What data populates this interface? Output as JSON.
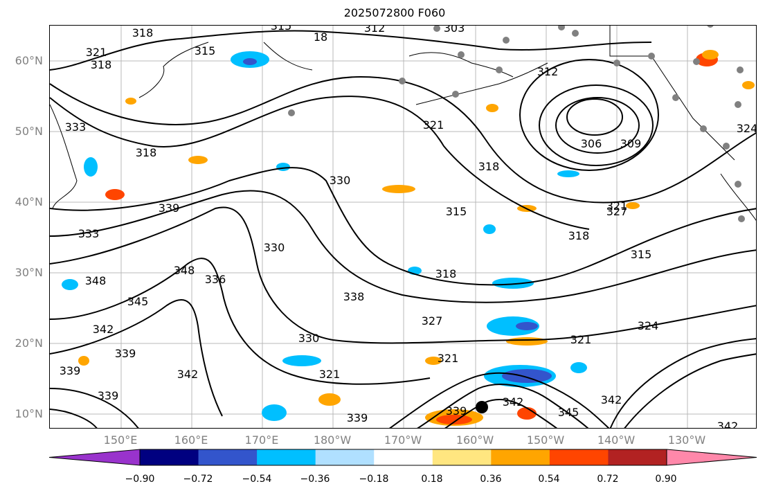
{
  "title": "2025072800 F060",
  "lat_labels": [
    "60°N",
    "50°N",
    "40°N",
    "30°N",
    "20°N",
    "10°N"
  ],
  "lon_labels": [
    "150°E",
    "160°E",
    "170°E",
    "180°W",
    "170°W",
    "160°W",
    "150°W",
    "140°W",
    "130°W"
  ],
  "colorbar": {
    "ticks": [
      "−0.90",
      "−0.72",
      "−0.54",
      "−0.36",
      "−0.18",
      "0.18",
      "0.36",
      "0.54",
      "0.72",
      "0.90"
    ],
    "colors": [
      "#9933cc",
      "#000080",
      "#3355cc",
      "#00bfff",
      "#b0e0ff",
      "#ffffff",
      "#ffe680",
      "#ffa500",
      "#ff4500",
      "#b22222",
      "#ff88aa"
    ]
  },
  "contour_labels": [
    "318",
    "321",
    "318",
    "315",
    "315",
    "312",
    "303",
    "18",
    "312",
    "306",
    "309",
    "324",
    "333",
    "318",
    "321",
    "318",
    "330",
    "339",
    "315",
    "318",
    "327",
    "333",
    "330",
    "315",
    "348",
    "348",
    "345",
    "336",
    "318",
    "338",
    "327",
    "321",
    "342",
    "339",
    "321",
    "330",
    "339",
    "342",
    "321",
    "339",
    "339",
    "342",
    "342",
    "324",
    "342",
    "339",
    "345",
    "321"
  ]
}
